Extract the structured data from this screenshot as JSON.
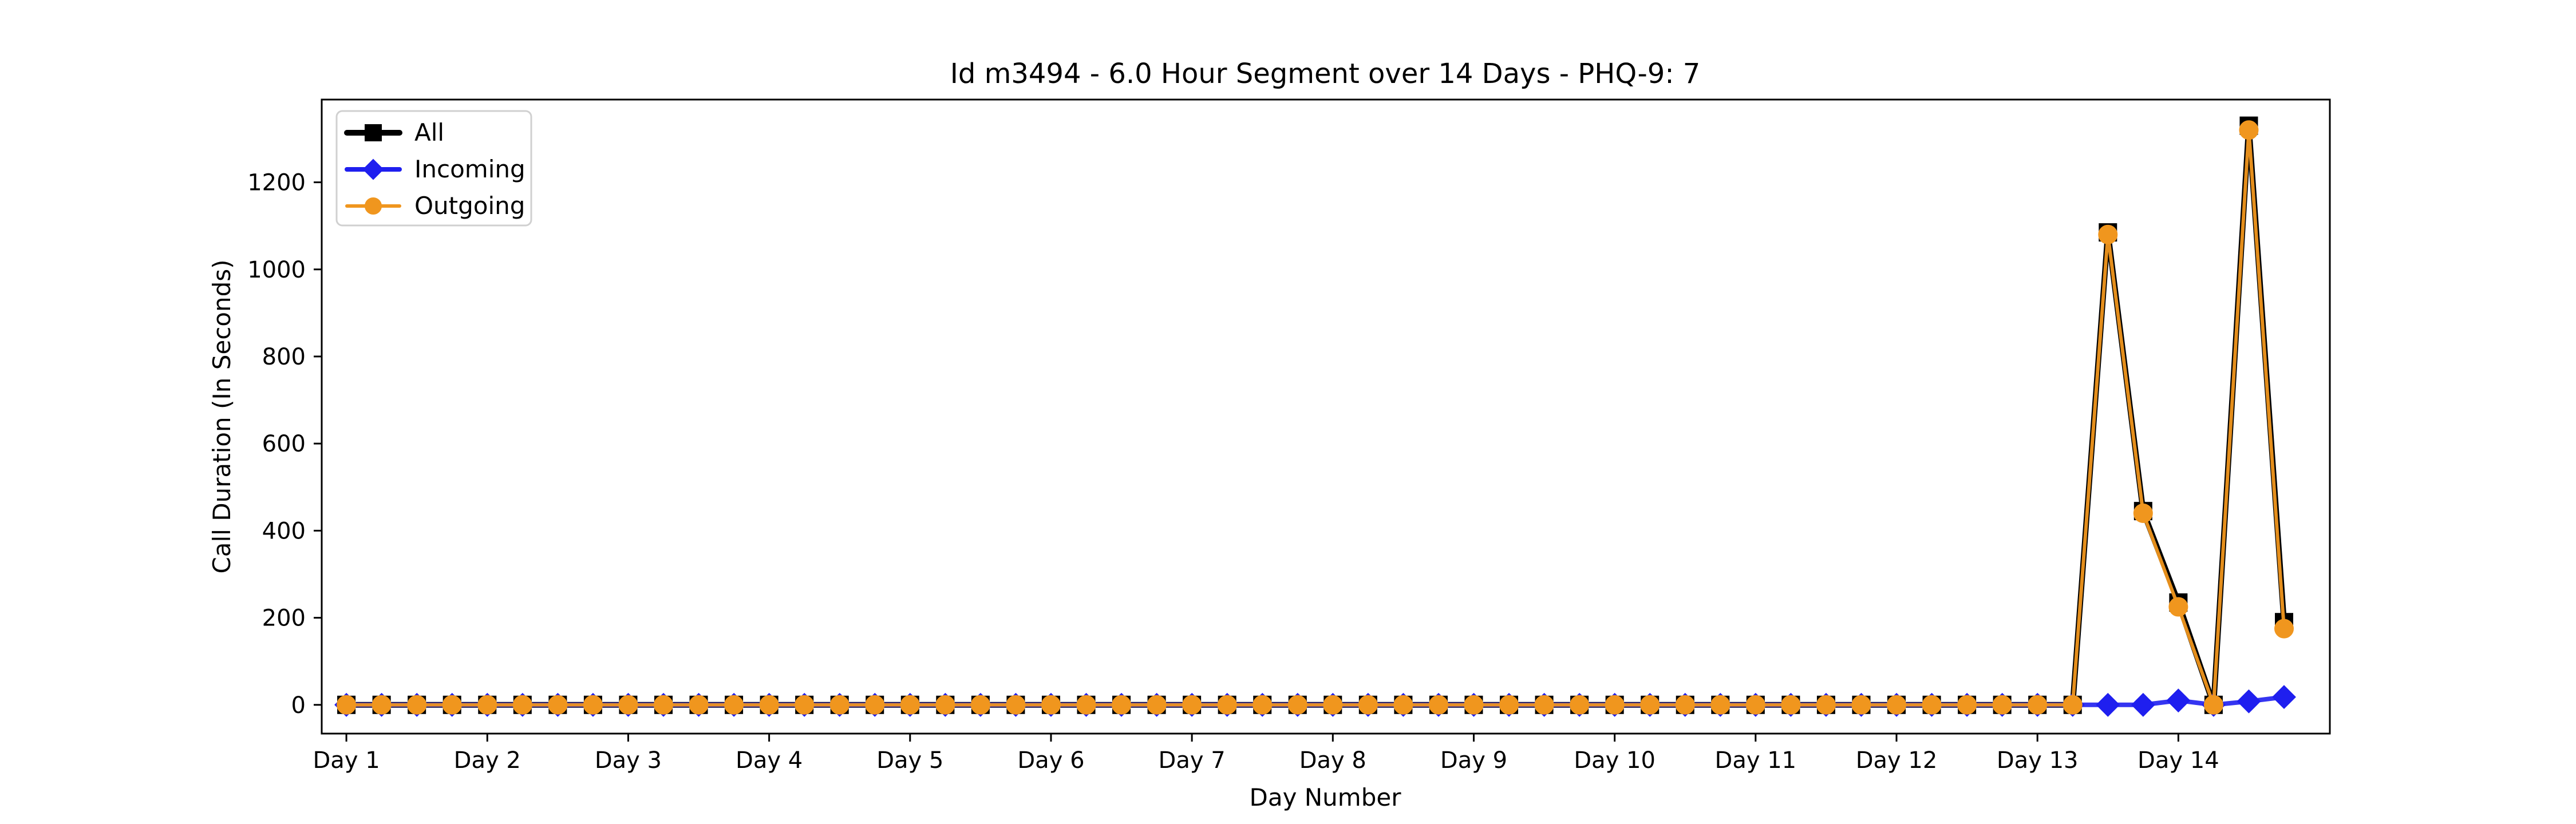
{
  "chart_data": {
    "type": "line",
    "title": "Id m3494 - 6.0 Hour Segment over 14 Days - PHQ-9: 7",
    "xlabel": "Day Number",
    "ylabel": "Call Duration (In Seconds)",
    "xlim": [
      -0.7,
      56.3
    ],
    "ylim": [
      -66,
      1390
    ],
    "yticks": [
      0,
      200,
      400,
      600,
      800,
      1000,
      1200
    ],
    "xticks": [
      {
        "x": 0,
        "label": "Day 1"
      },
      {
        "x": 4,
        "label": "Day 2"
      },
      {
        "x": 8,
        "label": "Day 3"
      },
      {
        "x": 12,
        "label": "Day 4"
      },
      {
        "x": 16,
        "label": "Day 5"
      },
      {
        "x": 20,
        "label": "Day 6"
      },
      {
        "x": 24,
        "label": "Day 7"
      },
      {
        "x": 28,
        "label": "Day 8"
      },
      {
        "x": 32,
        "label": "Day 9"
      },
      {
        "x": 36,
        "label": "Day 10"
      },
      {
        "x": 40,
        "label": "Day 11"
      },
      {
        "x": 44,
        "label": "Day 12"
      },
      {
        "x": 48,
        "label": "Day 13"
      },
      {
        "x": 52,
        "label": "Day 14"
      }
    ],
    "legend": {
      "position": "top-left"
    },
    "grid": false,
    "series": [
      {
        "name": "All",
        "color": "#000000",
        "marker": "square",
        "values": [
          0,
          0,
          0,
          0,
          0,
          0,
          0,
          0,
          0,
          0,
          0,
          0,
          0,
          0,
          0,
          0,
          0,
          0,
          0,
          0,
          0,
          0,
          0,
          0,
          0,
          0,
          0,
          0,
          0,
          0,
          0,
          0,
          0,
          0,
          0,
          0,
          0,
          0,
          0,
          0,
          0,
          0,
          0,
          0,
          0,
          0,
          0,
          0,
          0,
          0,
          1085,
          445,
          235,
          0,
          1330,
          190
        ]
      },
      {
        "name": "Incoming",
        "color": "#1f1fef",
        "marker": "diamond",
        "values": [
          0,
          0,
          0,
          0,
          0,
          0,
          0,
          0,
          0,
          0,
          0,
          0,
          0,
          0,
          0,
          0,
          0,
          0,
          0,
          0,
          0,
          0,
          0,
          0,
          0,
          0,
          0,
          0,
          0,
          0,
          0,
          0,
          0,
          0,
          0,
          0,
          0,
          0,
          0,
          0,
          0,
          0,
          0,
          0,
          0,
          0,
          0,
          0,
          0,
          0,
          0,
          0,
          10,
          0,
          8,
          18
        ]
      },
      {
        "name": "Outgoing",
        "color": "#f0961e",
        "marker": "circle",
        "values": [
          0,
          0,
          0,
          0,
          0,
          0,
          0,
          0,
          0,
          0,
          0,
          0,
          0,
          0,
          0,
          0,
          0,
          0,
          0,
          0,
          0,
          0,
          0,
          0,
          0,
          0,
          0,
          0,
          0,
          0,
          0,
          0,
          0,
          0,
          0,
          0,
          0,
          0,
          0,
          0,
          0,
          0,
          0,
          0,
          0,
          0,
          0,
          0,
          0,
          0,
          1080,
          440,
          225,
          0,
          1320,
          175
        ]
      }
    ]
  }
}
